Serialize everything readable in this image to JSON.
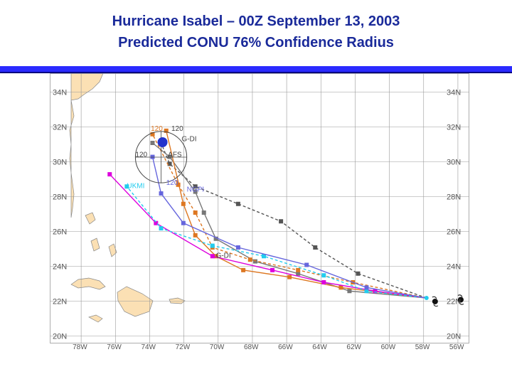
{
  "title_line1": "Hurricane Isabel – 00Z September 13, 2003",
  "title_line2": "Predicted CONU 76% Confidence Radius",
  "lat_labels": [
    "34N",
    "32N",
    "30N",
    "28N",
    "26N",
    "24N",
    "22N",
    "20N"
  ],
  "lon_labels": [
    "78W",
    "76W",
    "74W",
    "72W",
    "70W",
    "68W",
    "66W",
    "64W",
    "62W",
    "60W",
    "58W",
    "56W"
  ],
  "model_labels": [
    "120",
    "120",
    "G-DI",
    "120",
    "AFS",
    "UKMI",
    "120",
    "NGPI",
    "G-DI"
  ],
  "colors": {
    "accent_bar": "#2a2aff",
    "title": "#1a2a9a",
    "land": "#fbe0b4",
    "grid": "#999999",
    "conu_center": "#2233cc"
  },
  "tracks": [
    {
      "color": "#555555",
      "points": [
        [
          -57.5,
          22.1
        ],
        [
          -61.5,
          23.5
        ],
        [
          -64,
          25
        ],
        [
          -66,
          26.5
        ],
        [
          -68.5,
          27.5
        ],
        [
          -71,
          28.5
        ],
        [
          -72.5,
          29.8
        ],
        [
          -73,
          31.0
        ]
      ],
      "dashed": true
    },
    {
      "color": "#777777",
      "points": [
        [
          -57.5,
          22.1
        ],
        [
          -62,
          22.5
        ],
        [
          -65,
          23.5
        ],
        [
          -67.5,
          24.2
        ],
        [
          -69.8,
          25.5
        ],
        [
          -70.5,
          27
        ],
        [
          -71,
          28.2
        ],
        [
          -72.5,
          30.2
        ],
        [
          -73.5,
          31.0
        ]
      ],
      "dashed": false
    },
    {
      "color": "#dd7722",
      "points": [
        [
          -57.5,
          22.1
        ],
        [
          -61.8,
          23.0
        ],
        [
          -65,
          23.7
        ],
        [
          -67.8,
          24.3
        ],
        [
          -70,
          25
        ],
        [
          -71,
          27
        ],
        [
          -72,
          28.6
        ],
        [
          -73.5,
          31.5
        ]
      ],
      "dashed": true
    },
    {
      "color": "#dd7722",
      "points": [
        [
          -57.5,
          22.1
        ],
        [
          -62.5,
          22.7
        ],
        [
          -65.5,
          23.3
        ],
        [
          -68.2,
          23.7
        ],
        [
          -69.8,
          24.5
        ],
        [
          -71.0,
          25.7
        ],
        [
          -71.7,
          27.5
        ],
        [
          -72.7,
          31.7
        ]
      ],
      "dashed": false
    },
    {
      "color": "#dd00dd",
      "points": [
        [
          -57.5,
          22.1
        ],
        [
          -60.5,
          22.5
        ],
        [
          -63.5,
          23.0
        ],
        [
          -66.5,
          23.7
        ],
        [
          -70,
          24.5
        ],
        [
          -73.3,
          26.4
        ],
        [
          -76,
          29.2
        ]
      ],
      "dashed": false
    },
    {
      "color": "#22ccee",
      "points": [
        [
          -57.5,
          22.1
        ],
        [
          -61,
          22.5
        ],
        [
          -63.5,
          23.4
        ],
        [
          -67,
          24.5
        ],
        [
          -70,
          25.1
        ],
        [
          -73,
          26.1
        ],
        [
          -75,
          28.5
        ]
      ],
      "dashed": true
    },
    {
      "color": "#6666dd",
      "points": [
        [
          -57.5,
          22.1
        ],
        [
          -61,
          22.7
        ],
        [
          -64.5,
          24.0
        ],
        [
          -68.5,
          25.0
        ],
        [
          -71.7,
          26.4
        ],
        [
          -73,
          28.1
        ],
        [
          -73.5,
          30.2
        ]
      ],
      "dashed": false
    }
  ],
  "conu_circle": {
    "center_lon": -73.0,
    "center_lat": 31.0,
    "radius_deg": 1.5
  },
  "observed_track": [
    [
      -57.0,
      21.9
    ],
    [
      -55.5,
      22.0
    ],
    [
      -54.2,
      22.0
    ],
    [
      -53.0,
      22.1
    ]
  ]
}
